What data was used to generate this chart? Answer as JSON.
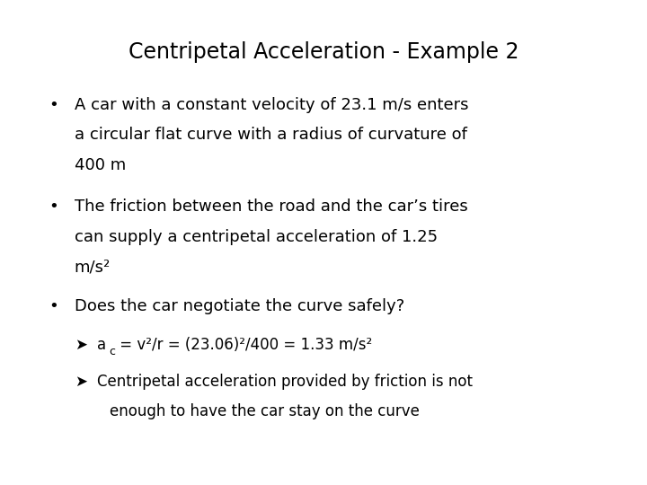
{
  "title": "Centripetal Acceleration - Example 2",
  "background_color": "#ffffff",
  "title_fontsize": 17,
  "body_fontsize": 13,
  "sub_fontsize": 12,
  "title_color": "#000000",
  "text_color": "#000000",
  "bullet1_line1": "A car with a constant velocity of 23.1 m/s enters",
  "bullet1_line2": "a circular flat curve with a radius of curvature of",
  "bullet1_line3": "400 m",
  "bullet2_line1": "The friction between the road and the car’s tires",
  "bullet2_line2": "can supply a centripetal acceleration of 1.25",
  "bullet2_line3": "m/s²",
  "bullet3": "Does the car negotiate the curve safely?",
  "sub1_rest": " = v²/r = (23.06)²/400 = 1.33 m/s²",
  "sub2_line1": "Centripetal acceleration provided by friction is not",
  "sub2_line2": "enough to have the car stay on the curve",
  "arrow": "➤",
  "bullet": "•",
  "font": "DejaVu Sans"
}
